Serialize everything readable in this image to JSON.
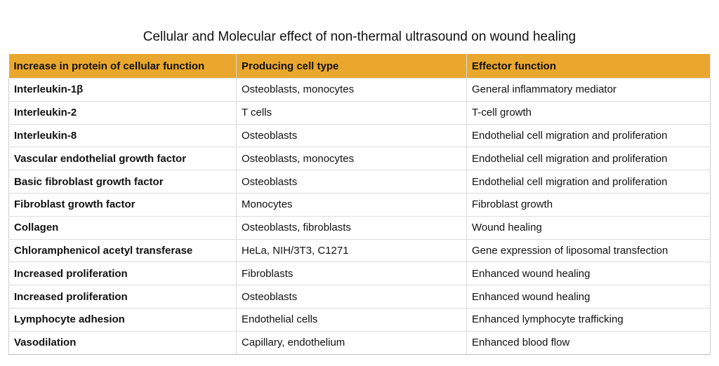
{
  "title": "Cellular and Molecular effect of non-thermal ultrasound on wound healing",
  "colors": {
    "header_bg": "#eaa72d",
    "border": "#dcdcdc",
    "text": "#111111"
  },
  "table": {
    "headers": [
      "Increase in protein of cellular function",
      "Producing cell type",
      "Effector function"
    ],
    "rows": [
      [
        "Interleukin-1β",
        "Osteoblasts, monocytes",
        "General inflammatory mediator"
      ],
      [
        "Interleukin-2",
        "T cells",
        "T-cell growth"
      ],
      [
        "Interleukin-8",
        "Osteoblasts",
        "Endothelial cell migration and proliferation"
      ],
      [
        "Vascular endothelial growth factor",
        "Osteoblasts, monocytes",
        "Endothelial cell migration and proliferation"
      ],
      [
        "Basic fibroblast growth factor",
        "Osteoblasts",
        "Endothelial cell migration and proliferation"
      ],
      [
        "Fibroblast growth factor",
        "Monocytes",
        "Fibroblast growth"
      ],
      [
        "Collagen",
        "Osteoblasts, fibroblasts",
        "Wound healing"
      ],
      [
        "Chloramphenicol acetyl transferase",
        "HeLa, NIH/3T3, C1271",
        "Gene expression of liposomal transfection"
      ],
      [
        "Increased proliferation",
        "Fibroblasts",
        "Enhanced wound healing"
      ],
      [
        "Increased proliferation",
        "Osteoblasts",
        "Enhanced wound healing"
      ],
      [
        "Lymphocyte adhesion",
        "Endothelial cells",
        "Enhanced lymphocyte trafficking"
      ],
      [
        "Vasodilation",
        "Capillary, endothelium",
        "Enhanced blood flow"
      ]
    ]
  }
}
